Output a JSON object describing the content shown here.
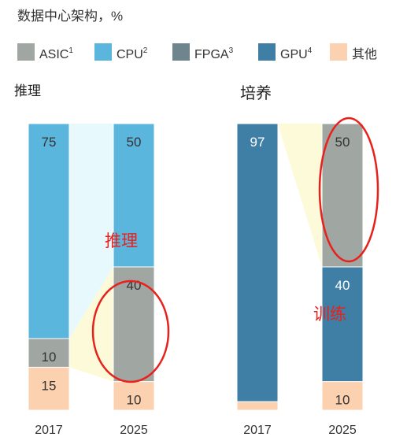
{
  "title": "数据中心架构，%",
  "colors": {
    "ASIC": "#a0a6a2",
    "CPU": "#5bb6de",
    "FPGA": "#6f858d",
    "GPU": "#3f7ea5",
    "Other": "#fbd1af",
    "shade_blue": "#e7f9fd",
    "shade_yellow": "#fcfad9",
    "annotation": "#e8211d"
  },
  "legend": [
    {
      "label": "ASIC",
      "sup": "1",
      "color": "#a0a6a2"
    },
    {
      "label": "CPU",
      "sup": "2",
      "color": "#5bb6de"
    },
    {
      "label": "FPGA",
      "sup": "3",
      "color": "#6f858d"
    },
    {
      "label": "GPU",
      "sup": "4",
      "color": "#3f7ea5"
    },
    {
      "label": "其他",
      "sup": "",
      "color": "#fbd1af"
    }
  ],
  "chart_data": [
    {
      "type": "bar",
      "stacked": true,
      "title": "推理",
      "categories": [
        "2017",
        "2025"
      ],
      "series": [
        {
          "name": "ASIC",
          "values": [
            10,
            40
          ]
        },
        {
          "name": "CPU",
          "values": [
            75,
            50
          ]
        },
        {
          "name": "FPGA",
          "values": [
            0,
            0
          ]
        },
        {
          "name": "GPU",
          "values": [
            0,
            0
          ]
        },
        {
          "name": "其他",
          "values": [
            15,
            10
          ]
        }
      ],
      "ylim": [
        0,
        100
      ],
      "annotation": "推理"
    },
    {
      "type": "bar",
      "stacked": true,
      "title": "培养",
      "categories": [
        "2017",
        "2025"
      ],
      "series": [
        {
          "name": "ASIC",
          "values": [
            0,
            50
          ]
        },
        {
          "name": "CPU",
          "values": [
            0,
            0
          ]
        },
        {
          "name": "FPGA",
          "values": [
            0,
            0
          ]
        },
        {
          "name": "GPU",
          "values": [
            97,
            40
          ]
        },
        {
          "name": "其他",
          "values": [
            3,
            10
          ]
        }
      ],
      "ylim": [
        0,
        100
      ],
      "annotation": "训练"
    }
  ]
}
